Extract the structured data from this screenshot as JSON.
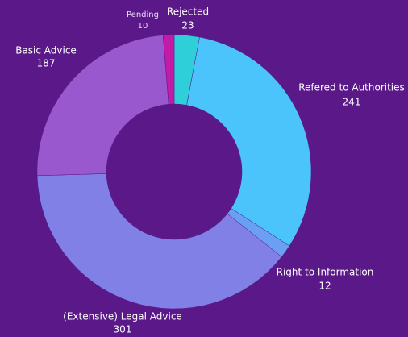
{
  "chart_data": {
    "type": "donut",
    "categories": [
      "Rejected",
      "Refered to Authorities",
      "Right to Information",
      "(Extensive) Legal Advice",
      "Basic Advice",
      "Pending"
    ],
    "values": [
      23,
      241,
      12,
      301,
      187,
      10
    ],
    "colors": [
      "#2ecfd8",
      "#4ac4fb",
      "#6a9ff3",
      "#8080e6",
      "#9a58cf",
      "#c41ba6"
    ]
  }
}
